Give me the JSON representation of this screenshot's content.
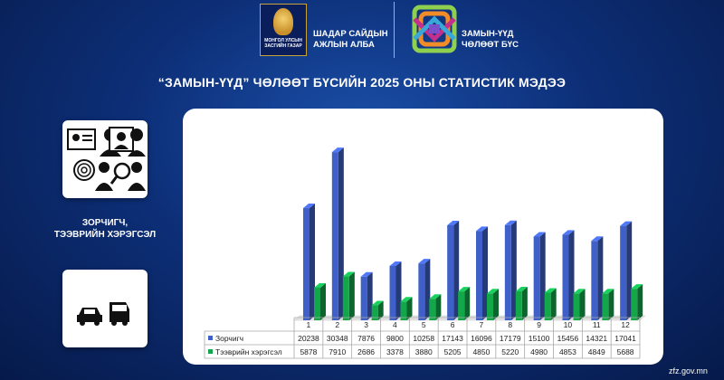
{
  "header": {
    "gov_logo_text": "МОНГОЛ УЛСЫН ЗАСГИЙН ГАЗАР",
    "agency_line1": "ШАДАР САЙДЫН",
    "agency_line2": "АЖЛЫН АЛБА",
    "zone_line1": "ЗАМЫН-ҮҮД",
    "zone_line2": "ЧӨЛӨӨТ БҮС"
  },
  "title": "“ЗАМЫН-ҮҮД” ЧӨЛӨӨТ БҮСИЙН 2025 ОНЫ СТАТИСТИК МЭДЭЭ",
  "category": {
    "line1": "ЗОРЧИГЧ,",
    "line2": "ТЭЭВРИЙН ХЭРЭГСЭЛ"
  },
  "footer": {
    "url": "zfz.gov.mn"
  },
  "colors": {
    "series_passengers": "#3f60c8",
    "series_vehicles": "#12a84a",
    "background": "#0d2f78"
  },
  "icons": {
    "passengers_card": "people-document-fingerprint-icon",
    "vehicles_card": "car-and-van-icon"
  },
  "chart_data": {
    "type": "bar",
    "categories": [
      "1",
      "2",
      "3",
      "4",
      "5",
      "6",
      "7",
      "8",
      "9",
      "10",
      "11",
      "12"
    ],
    "series": [
      {
        "name": "Зорчигч",
        "values": [
          20238,
          30348,
          7876,
          9800,
          10258,
          17143,
          16096,
          17179,
          15100,
          15456,
          14321,
          17041
        ]
      },
      {
        "name": "Тээврийн хэрэгсэл",
        "values": [
          5878,
          7910,
          2686,
          3378,
          3880,
          5205,
          4850,
          5220,
          4980,
          4853,
          4849,
          5688
        ]
      }
    ],
    "ylim": [
      0,
      32000
    ],
    "grid": false,
    "legend": "bottom-table",
    "style": "3d-columns"
  }
}
